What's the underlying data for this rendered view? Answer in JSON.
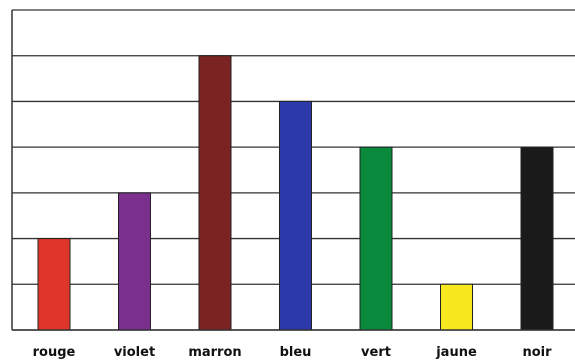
{
  "chart_data": {
    "type": "bar",
    "title": "",
    "xlabel": "",
    "ylabel": "",
    "categories": [
      "rouge",
      "violet",
      "marron",
      "bleu",
      "vert",
      "jaune",
      "noir"
    ],
    "values": [
      2,
      3,
      6,
      5,
      4,
      1,
      4
    ],
    "colors": [
      "#e0352b",
      "#7b2f8e",
      "#7a2322",
      "#2b3aa8",
      "#0a8a3c",
      "#f7e81f",
      "#1a1a1a"
    ],
    "ylim": [
      0,
      7
    ],
    "grid": true,
    "legend": "none"
  }
}
